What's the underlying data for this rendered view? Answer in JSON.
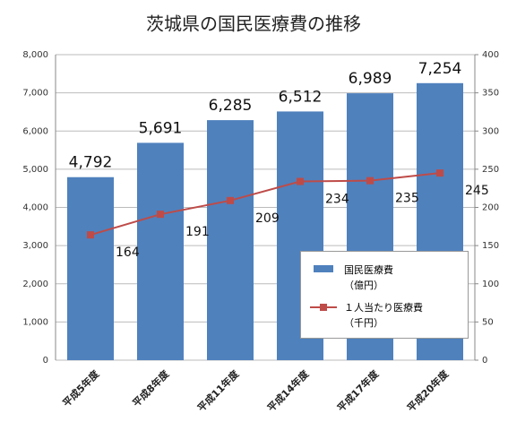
{
  "chart_data": {
    "type": "bar-line",
    "title": "茨城県の国民医療費の推移",
    "categories": [
      "平成5年度",
      "平成8年度",
      "平成11年度",
      "平成14年度",
      "平成17年度",
      "平成20年度"
    ],
    "series": [
      {
        "name": "国民医療費\n（億円）",
        "type": "bar",
        "color": "#4f81bd",
        "values": [
          4792,
          5691,
          6285,
          6512,
          6989,
          7254
        ],
        "value_labels": [
          "4,792",
          "5,691",
          "6,285",
          "6,512",
          "6,989",
          "7,254"
        ]
      },
      {
        "name": "１人当たり医療費\n（千円）",
        "type": "line",
        "axis": "y2",
        "color": "#be4b48",
        "values": [
          164,
          191,
          209,
          234,
          235,
          245
        ]
      }
    ],
    "ylim": [
      0,
      8000
    ],
    "yticks": [
      0,
      {
        "value": 1000,
        "label": "1,000"
      },
      {
        "value": 2000,
        "label": "2,000"
      },
      {
        "value": 3000,
        "label": "3,000"
      },
      {
        "value": 4000,
        "label": "4,000"
      },
      {
        "value": 5000,
        "label": "5,000"
      },
      {
        "value": 6000,
        "label": "6,000"
      },
      {
        "value": 7000,
        "label": "7,000"
      },
      {
        "value": 8000,
        "label": "8,000"
      }
    ],
    "y2lim": [
      0,
      400
    ],
    "y2ticks": [
      0,
      50,
      100,
      150,
      200,
      250,
      300,
      350,
      400
    ],
    "grid": true
  }
}
